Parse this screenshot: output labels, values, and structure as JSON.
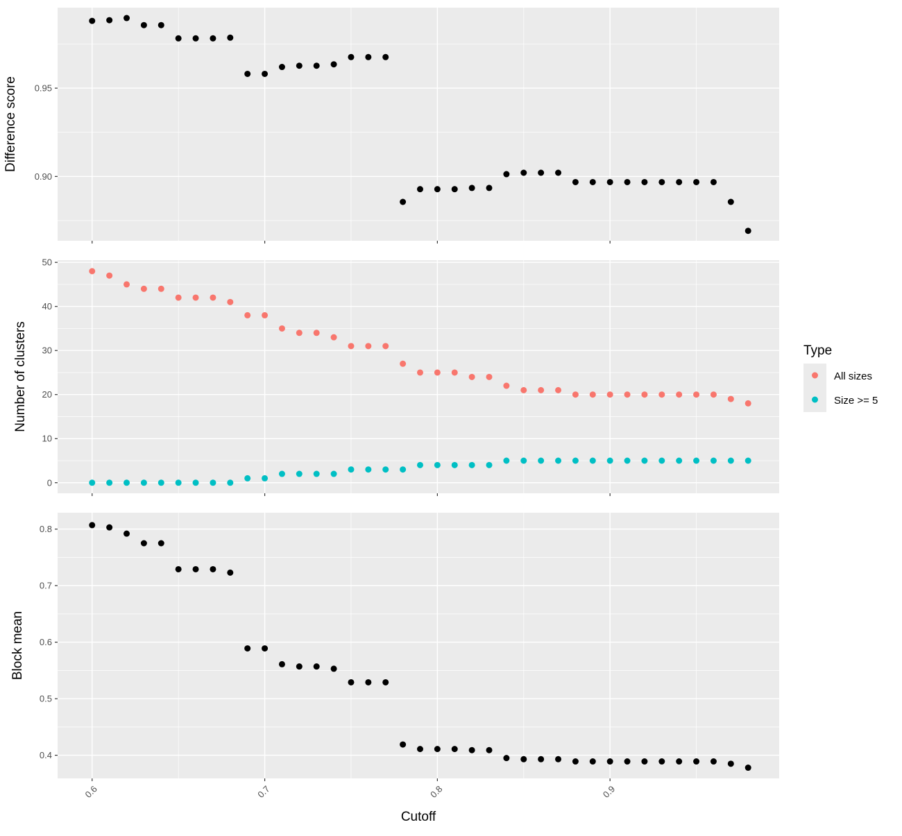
{
  "chart_data": {
    "type": "scatter",
    "xlabel": "Cutoff",
    "x_ticks": [
      "0.6",
      "0.7",
      "0.8",
      "0.9"
    ],
    "xlim": [
      0.58,
      0.998
    ],
    "grid": true,
    "legend": {
      "title": "Type",
      "position": "right",
      "entries": [
        {
          "label": "All sizes",
          "color": "#F8766D"
        },
        {
          "label": "Size >= 5",
          "color": "#00BFC4"
        }
      ]
    },
    "x": [
      0.6,
      0.61,
      0.62,
      0.63,
      0.64,
      0.65,
      0.66,
      0.67,
      0.68,
      0.69,
      0.7,
      0.71,
      0.72,
      0.73,
      0.74,
      0.75,
      0.76,
      0.77,
      0.78,
      0.79,
      0.8,
      0.81,
      0.82,
      0.83,
      0.84,
      0.85,
      0.86,
      0.87,
      0.88,
      0.89,
      0.9,
      0.91,
      0.92,
      0.93,
      0.94,
      0.95,
      0.96,
      0.97,
      0.98
    ],
    "panels": [
      {
        "ylabel": "Difference score",
        "ylim": [
          0.8636,
          0.9956
        ],
        "y_ticks": [
          "0.90",
          "0.95"
        ],
        "series": [
          {
            "color": "#000000",
            "values": [
              0.9881,
              0.9885,
              0.9897,
              0.9857,
              0.9857,
              0.9782,
              0.9782,
              0.9782,
              0.9786,
              0.9581,
              0.9581,
              0.962,
              0.9627,
              0.9627,
              0.9635,
              0.9676,
              0.9676,
              0.9676,
              0.8856,
              0.8928,
              0.8928,
              0.8928,
              0.8935,
              0.8935,
              0.9013,
              0.9021,
              0.9021,
              0.9021,
              0.8968,
              0.8968,
              0.8968,
              0.8968,
              0.8968,
              0.8968,
              0.8968,
              0.8968,
              0.8968,
              0.8856,
              0.8692
            ]
          }
        ]
      },
      {
        "ylabel": "Number of clusters",
        "ylim": [
          -2.4,
          50.5
        ],
        "y_ticks": [
          "0",
          "10",
          "20",
          "30",
          "40",
          "50"
        ],
        "series": [
          {
            "name": "All sizes",
            "color": "#F8766D",
            "values": [
              48,
              47,
              45,
              44,
              44,
              42,
              42,
              42,
              41,
              38,
              38,
              35,
              34,
              34,
              33,
              31,
              31,
              31,
              27,
              25,
              25,
              25,
              24,
              24,
              22,
              21,
              21,
              21,
              20,
              20,
              20,
              20,
              20,
              20,
              20,
              20,
              20,
              19,
              18
            ]
          },
          {
            "name": "Size >= 5",
            "color": "#00BFC4",
            "values": [
              0,
              0,
              0,
              0,
              0,
              0,
              0,
              0,
              0,
              1,
              1,
              2,
              2,
              2,
              2,
              3,
              3,
              3,
              3,
              4,
              4,
              4,
              4,
              4,
              5,
              5,
              5,
              5,
              5,
              5,
              5,
              5,
              5,
              5,
              5,
              5,
              5,
              5,
              5
            ]
          }
        ]
      },
      {
        "ylabel": "Block mean",
        "ylim": [
          0.359,
          0.829
        ],
        "y_ticks": [
          "0.4",
          "0.5",
          "0.6",
          "0.7",
          "0.8"
        ],
        "series": [
          {
            "color": "#000000",
            "values": [
              0.807,
              0.803,
              0.792,
              0.775,
              0.775,
              0.729,
              0.729,
              0.729,
              0.723,
              0.589,
              0.589,
              0.561,
              0.557,
              0.557,
              0.553,
              0.529,
              0.529,
              0.529,
              0.419,
              0.411,
              0.411,
              0.411,
              0.409,
              0.409,
              0.395,
              0.393,
              0.393,
              0.393,
              0.389,
              0.389,
              0.389,
              0.389,
              0.389,
              0.389,
              0.389,
              0.389,
              0.389,
              0.385,
              0.378
            ]
          }
        ]
      }
    ]
  }
}
